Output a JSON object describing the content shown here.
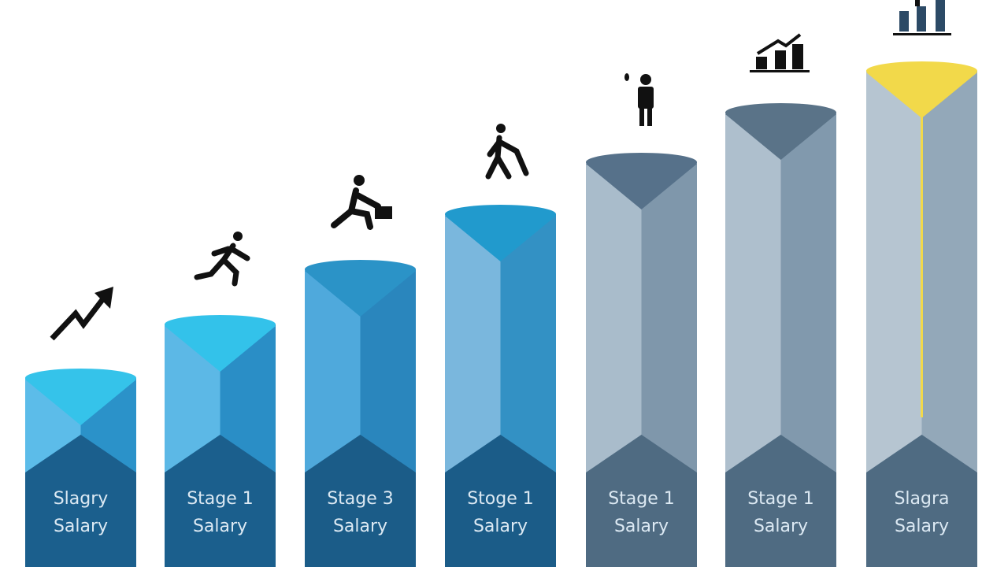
{
  "columns": [
    {
      "label": "Slagry",
      "sublabel": "Salary"
    },
    {
      "label": "Stage 1",
      "sublabel": "Salary"
    },
    {
      "label": "Stage 3",
      "sublabel": "Salary"
    },
    {
      "label": "Stoge 1",
      "sublabel": "Salary"
    },
    {
      "label": "Stage 1",
      "sublabel": "Salary"
    },
    {
      "label": "Stage 1",
      "sublabel": "Salary"
    },
    {
      "label": "Slagra",
      "sublabel": "Salary"
    }
  ]
}
